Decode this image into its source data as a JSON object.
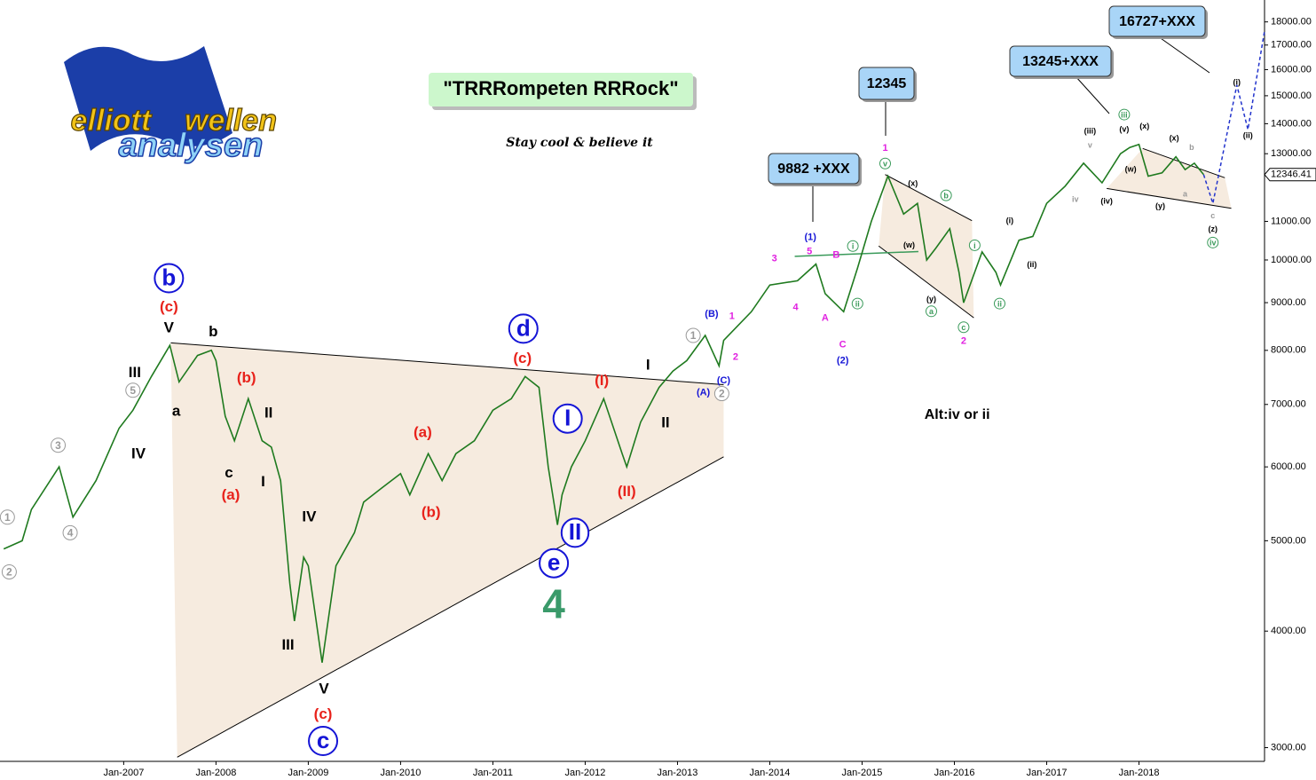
{
  "chart_data": {
    "type": "line",
    "title": "\"TRRRompeten RRRock\"",
    "subtitle": "Stay cool & believe it",
    "logo": [
      "elliott",
      "wellen",
      "analysen"
    ],
    "boxes": [
      "12345",
      "9882 +XXX",
      "13245+XXX",
      "16727+XXX"
    ],
    "log_y": true,
    "grid": false,
    "xlim": [
      2005.66,
      2019.36
    ],
    "ylim": [
      2900,
      19000
    ],
    "xticks": [
      {
        "value": 2007,
        "label": "Jan-2007"
      },
      {
        "value": 2008,
        "label": "Jan-2008"
      },
      {
        "value": 2009,
        "label": "Jan-2009"
      },
      {
        "value": 2010,
        "label": "Jan-2010"
      },
      {
        "value": 2011,
        "label": "Jan-2011"
      },
      {
        "value": 2012,
        "label": "Jan-2012"
      },
      {
        "value": 2013,
        "label": "Jan-2013"
      },
      {
        "value": 2014,
        "label": "Jan-2014"
      },
      {
        "value": 2015,
        "label": "Jan-2015"
      },
      {
        "value": 2016,
        "label": "Jan-2016"
      },
      {
        "value": 2017,
        "label": "Jan-2017"
      },
      {
        "value": 2018,
        "label": "Jan-2018"
      }
    ],
    "yticks": [
      {
        "value": 3000,
        "label": "3000.00"
      },
      {
        "value": 4000,
        "label": "4000.00"
      },
      {
        "value": 5000,
        "label": "5000.00"
      },
      {
        "value": 6000,
        "label": "6000.00"
      },
      {
        "value": 7000,
        "label": "7000.00"
      },
      {
        "value": 8000,
        "label": "8000.00"
      },
      {
        "value": 9000,
        "label": "9000.00"
      },
      {
        "value": 10000,
        "label": "10000.00"
      },
      {
        "value": 11000,
        "label": "11000.00"
      },
      {
        "value": 13000,
        "label": "13000.00"
      },
      {
        "value": 14000,
        "label": "14000.00"
      },
      {
        "value": 15000,
        "label": "15000.00"
      },
      {
        "value": 16000,
        "label": "16000.00"
      },
      {
        "value": 17000,
        "label": "17000.00"
      },
      {
        "value": 18000,
        "label": "18000.00"
      }
    ],
    "y_marker": {
      "value": 12346.41,
      "label": "12346.41"
    },
    "shade_color": "#f6ebdf",
    "series": [
      {
        "color": "#1f7a1f",
        "x": [
          2005.7,
          2005.9,
          2006.0,
          2006.3,
          2006.45,
          2006.7,
          2006.95,
          2007.1,
          2007.3,
          2007.5,
          2007.6,
          2007.8,
          2007.95,
          2008.0,
          2008.1,
          2008.2,
          2008.35,
          2008.5,
          2008.6,
          2008.7,
          2008.8,
          2008.85,
          2008.95,
          2009.0,
          2009.15,
          2009.3,
          2009.5,
          2009.6,
          2009.8,
          2010.0,
          2010.1,
          2010.3,
          2010.45,
          2010.6,
          2010.8,
          2011.0,
          2011.2,
          2011.35,
          2011.5,
          2011.6,
          2011.7,
          2011.75,
          2011.85,
          2012.0,
          2012.2,
          2012.4,
          2012.45,
          2012.6,
          2012.8,
          2012.95,
          2013.1,
          2013.3,
          2013.45,
          2013.5,
          2013.8,
          2014.0,
          2014.3,
          2014.5,
          2014.6,
          2014.8,
          2014.95,
          2015.1,
          2015.28,
          2015.45,
          2015.6,
          2015.7,
          2015.8,
          2015.95,
          2016.05,
          2016.1,
          2016.3,
          2016.45,
          2016.5,
          2016.7,
          2016.85,
          2017.0,
          2017.2,
          2017.4,
          2017.6,
          2017.8,
          2017.9,
          2018.0,
          2018.1,
          2018.25,
          2018.4,
          2018.5,
          2018.6,
          2018.7
        ],
        "y": [
          4900,
          5000,
          5400,
          6000,
          5300,
          5800,
          6600,
          6900,
          7500,
          8100,
          7400,
          7900,
          8000,
          7800,
          6800,
          6400,
          7100,
          6400,
          6300,
          5800,
          4500,
          4100,
          4800,
          4700,
          3700,
          4700,
          5100,
          5500,
          5700,
          5900,
          5600,
          6200,
          5800,
          6200,
          6400,
          6900,
          7100,
          7500,
          7300,
          6000,
          5200,
          5600,
          6000,
          6400,
          7100,
          6200,
          6000,
          6700,
          7300,
          7600,
          7800,
          8300,
          7700,
          8200,
          8800,
          9400,
          9500,
          9900,
          9200,
          8800,
          9800,
          11000,
          12300,
          11200,
          11500,
          10000,
          10300,
          10800,
          9700,
          9000,
          10200,
          9700,
          9400,
          10500,
          10600,
          11500,
          12000,
          12700,
          12100,
          13000,
          13200,
          13300,
          12300,
          12400,
          12900,
          12500,
          12700,
          12346.41
        ]
      },
      {
        "color": "#2233cc",
        "dashed": true,
        "x": [
          2018.7,
          2018.8,
          2019.06,
          2019.18,
          2019.36
        ],
        "y": [
          12346.41,
          11500,
          15400,
          13800,
          17600
        ]
      }
    ],
    "channels": [
      {
        "upper": {
          "x": [
            2007.51,
            2013.5
          ],
          "y": [
            8150,
            7350
          ]
        },
        "lower": {
          "x": [
            2007.58,
            2013.5
          ],
          "y": [
            2930,
            6150
          ]
        }
      },
      {
        "upper": {
          "x": [
            2015.25,
            2016.19
          ],
          "y": [
            12350,
            11020
          ]
        },
        "lower": {
          "x": [
            2015.18,
            2016.21
          ],
          "y": [
            10350,
            8670
          ]
        }
      },
      {
        "upper": {
          "x": [
            2018.04,
            2018.93
          ],
          "y": [
            13170,
            12250
          ]
        },
        "lower": {
          "x": [
            2017.65,
            2019.0
          ],
          "y": [
            11930,
            11360
          ]
        }
      }
    ],
    "trendlines": [
      {
        "x": [
          2014.27,
          2015.61
        ],
        "y": [
          10090,
          10210
        ],
        "color": "#3a9a5a"
      }
    ],
    "annotations": [
      {
        "text": "b",
        "x": 2007.49,
        "y": 9560,
        "color": "#1515d6",
        "style": "circled-big"
      },
      {
        "text": "(c)",
        "x": 2007.49,
        "y": 8910,
        "color": "#e8221b",
        "style": "label"
      },
      {
        "text": "V",
        "x": 2007.49,
        "y": 8470,
        "color": "#000000",
        "style": "label"
      },
      {
        "text": "a",
        "x": 2007.57,
        "y": 6890,
        "color": "#000000",
        "style": "label"
      },
      {
        "text": "b",
        "x": 2007.97,
        "y": 8380,
        "color": "#000000",
        "style": "label"
      },
      {
        "text": "(b)",
        "x": 2008.33,
        "y": 7480,
        "color": "#e8221b",
        "style": "label"
      },
      {
        "text": "c",
        "x": 2008.14,
        "y": 5920,
        "color": "#000000",
        "style": "label"
      },
      {
        "text": "(a)",
        "x": 2008.16,
        "y": 5600,
        "color": "#e8221b",
        "style": "label"
      },
      {
        "text": "II",
        "x": 2008.57,
        "y": 6860,
        "color": "#000000",
        "style": "label"
      },
      {
        "text": "I",
        "x": 2008.51,
        "y": 5790,
        "color": "#000000",
        "style": "label"
      },
      {
        "text": "III",
        "x": 2007.12,
        "y": 7580,
        "color": "#000000",
        "style": "label"
      },
      {
        "text": "5",
        "x": 2007.1,
        "y": 7250,
        "color": "#999999",
        "style": "circled"
      },
      {
        "text": "IV",
        "x": 2007.16,
        "y": 6200,
        "color": "#000000",
        "style": "label"
      },
      {
        "text": "3",
        "x": 2006.29,
        "y": 6330,
        "color": "#999999",
        "style": "circled"
      },
      {
        "text": "4",
        "x": 2006.42,
        "y": 5100,
        "color": "#999999",
        "style": "circled"
      },
      {
        "text": "1",
        "x": 2005.74,
        "y": 5300,
        "color": "#999999",
        "style": "circled"
      },
      {
        "text": "2",
        "x": 2005.76,
        "y": 4630,
        "color": "#999999",
        "style": "circled"
      },
      {
        "text": "IV",
        "x": 2009.01,
        "y": 5310,
        "color": "#000000",
        "style": "label"
      },
      {
        "text": "III",
        "x": 2008.78,
        "y": 3870,
        "color": "#000000",
        "style": "label"
      },
      {
        "text": "V",
        "x": 2009.17,
        "y": 3470,
        "color": "#000000",
        "style": "label"
      },
      {
        "text": "(c)",
        "x": 2009.16,
        "y": 3260,
        "color": "#e8221b",
        "style": "label"
      },
      {
        "text": "c",
        "x": 2009.16,
        "y": 3050,
        "color": "#1515d6",
        "style": "circled-big"
      },
      {
        "text": "(a)",
        "x": 2010.24,
        "y": 6540,
        "color": "#e8221b",
        "style": "label"
      },
      {
        "text": "(b)",
        "x": 2010.33,
        "y": 5370,
        "color": "#e8221b",
        "style": "label"
      },
      {
        "text": "d",
        "x": 2011.33,
        "y": 8440,
        "color": "#1515d6",
        "style": "circled-big"
      },
      {
        "text": "(c)",
        "x": 2011.32,
        "y": 7850,
        "color": "#e8221b",
        "style": "label"
      },
      {
        "text": "(I)",
        "x": 2012.18,
        "y": 7430,
        "color": "#e8221b",
        "style": "label"
      },
      {
        "text": "I",
        "x": 2011.81,
        "y": 6760,
        "color": "#1515d6",
        "style": "circled-big"
      },
      {
        "text": "II",
        "x": 2011.89,
        "y": 5100,
        "color": "#1515d6",
        "style": "circled-big"
      },
      {
        "text": "e",
        "x": 2011.66,
        "y": 4730,
        "color": "#1515d6",
        "style": "circled-big"
      },
      {
        "text": "4",
        "x": 2011.66,
        "y": 4250,
        "color": "#3a9a6a",
        "style": "huge"
      },
      {
        "text": "(II)",
        "x": 2012.45,
        "y": 5650,
        "color": "#e8221b",
        "style": "label"
      },
      {
        "text": "I",
        "x": 2012.68,
        "y": 7720,
        "color": "#000000",
        "style": "label"
      },
      {
        "text": "II",
        "x": 2012.87,
        "y": 6700,
        "color": "#000000",
        "style": "label"
      },
      {
        "text": "(A)",
        "x": 2013.28,
        "y": 7220,
        "color": "#1515d6",
        "style": "small"
      },
      {
        "text": "(B)",
        "x": 2013.37,
        "y": 8770,
        "color": "#1515d6",
        "style": "small"
      },
      {
        "text": "(C)",
        "x": 2013.5,
        "y": 7440,
        "color": "#1515d6",
        "style": "small"
      },
      {
        "text": "1",
        "x": 2013.17,
        "y": 8300,
        "color": "#999999",
        "style": "circled"
      },
      {
        "text": "2",
        "x": 2013.48,
        "y": 7190,
        "color": "#999999",
        "style": "circled"
      },
      {
        "text": "1",
        "x": 2013.59,
        "y": 8720,
        "color": "#e020e0",
        "style": "small"
      },
      {
        "text": "2",
        "x": 2013.63,
        "y": 7880,
        "color": "#e020e0",
        "style": "small"
      },
      {
        "text": "3",
        "x": 2014.05,
        "y": 10050,
        "color": "#e020e0",
        "style": "small"
      },
      {
        "text": "4",
        "x": 2014.28,
        "y": 8910,
        "color": "#e020e0",
        "style": "small"
      },
      {
        "text": "5",
        "x": 2014.43,
        "y": 10230,
        "color": "#e020e0",
        "style": "small"
      },
      {
        "text": "(1)",
        "x": 2014.44,
        "y": 10600,
        "color": "#1515d6",
        "style": "small"
      },
      {
        "text": "A",
        "x": 2014.6,
        "y": 8680,
        "color": "#e020e0",
        "style": "small"
      },
      {
        "text": "B",
        "x": 2014.72,
        "y": 10140,
        "color": "#e020e0",
        "style": "small"
      },
      {
        "text": "C",
        "x": 2014.79,
        "y": 8130,
        "color": "#e020e0",
        "style": "small"
      },
      {
        "text": "(2)",
        "x": 2014.79,
        "y": 7810,
        "color": "#1515d6",
        "style": "small"
      },
      {
        "text": "1",
        "x": 2015.25,
        "y": 13200,
        "color": "#e020e0",
        "style": "small"
      },
      {
        "text": "v",
        "x": 2015.25,
        "y": 12690,
        "color": "#3a9a5a",
        "style": "circled-small"
      },
      {
        "text": "i",
        "x": 2014.9,
        "y": 10350,
        "color": "#3a9a5a",
        "style": "circled-small"
      },
      {
        "text": "ii",
        "x": 2014.95,
        "y": 8980,
        "color": "#3a9a5a",
        "style": "circled-small"
      },
      {
        "text": "(x)",
        "x": 2015.55,
        "y": 12090,
        "color": "#000000",
        "style": "tiny"
      },
      {
        "text": "(w)",
        "x": 2015.51,
        "y": 10390,
        "color": "#000000",
        "style": "tiny"
      },
      {
        "text": "(y)",
        "x": 2015.75,
        "y": 9090,
        "color": "#000000",
        "style": "tiny"
      },
      {
        "text": "a",
        "x": 2015.75,
        "y": 8810,
        "color": "#3a9a5a",
        "style": "circled-small"
      },
      {
        "text": "b",
        "x": 2015.91,
        "y": 11730,
        "color": "#3a9a5a",
        "style": "circled-small"
      },
      {
        "text": "c",
        "x": 2016.1,
        "y": 8470,
        "color": "#3a9a5a",
        "style": "circled-small"
      },
      {
        "text": "2",
        "x": 2016.1,
        "y": 8200,
        "color": "#e020e0",
        "style": "small"
      },
      {
        "text": "i",
        "x": 2016.22,
        "y": 10370,
        "color": "#3a9a5a",
        "style": "circled-small"
      },
      {
        "text": "ii",
        "x": 2016.49,
        "y": 8980,
        "color": "#3a9a5a",
        "style": "circled-small"
      },
      {
        "text": "(i)",
        "x": 2016.6,
        "y": 11030,
        "color": "#000000",
        "style": "tiny"
      },
      {
        "text": "(ii)",
        "x": 2016.84,
        "y": 9900,
        "color": "#000000",
        "style": "tiny"
      },
      {
        "text": "iv",
        "x": 2017.31,
        "y": 11630,
        "color": "#999999",
        "style": "tiny"
      },
      {
        "text": "(iii)",
        "x": 2017.47,
        "y": 13770,
        "color": "#000000",
        "style": "tiny"
      },
      {
        "text": "v",
        "x": 2017.47,
        "y": 13290,
        "color": "#999999",
        "style": "tiny"
      },
      {
        "text": "(iv)",
        "x": 2017.65,
        "y": 11580,
        "color": "#000000",
        "style": "tiny"
      },
      {
        "text": "iii",
        "x": 2017.84,
        "y": 14320,
        "color": "#3a9a5a",
        "style": "circled-small"
      },
      {
        "text": "(v)",
        "x": 2017.84,
        "y": 13820,
        "color": "#000000",
        "style": "tiny"
      },
      {
        "text": "(w)",
        "x": 2017.91,
        "y": 12530,
        "color": "#000000",
        "style": "tiny"
      },
      {
        "text": "(x)",
        "x": 2018.06,
        "y": 13930,
        "color": "#000000",
        "style": "tiny"
      },
      {
        "text": "(y)",
        "x": 2018.23,
        "y": 11440,
        "color": "#000000",
        "style": "tiny"
      },
      {
        "text": "(x)",
        "x": 2018.38,
        "y": 13530,
        "color": "#000000",
        "style": "tiny"
      },
      {
        "text": "a",
        "x": 2018.5,
        "y": 11780,
        "color": "#999999",
        "style": "tiny"
      },
      {
        "text": "b",
        "x": 2018.57,
        "y": 13220,
        "color": "#999999",
        "style": "tiny"
      },
      {
        "text": "c",
        "x": 2018.8,
        "y": 11170,
        "color": "#999999",
        "style": "tiny"
      },
      {
        "text": "(z)",
        "x": 2018.8,
        "y": 10800,
        "color": "#000000",
        "style": "tiny"
      },
      {
        "text": "iv",
        "x": 2018.8,
        "y": 10440,
        "color": "#3a9a5a",
        "style": "circled-small"
      },
      {
        "text": "(i)",
        "x": 2019.06,
        "y": 15530,
        "color": "#000000",
        "style": "tiny"
      },
      {
        "text": "(ii)",
        "x": 2019.18,
        "y": 13610,
        "color": "#000000",
        "style": "tiny"
      },
      {
        "text": "Alt:iv or ii",
        "x": 2016.03,
        "y": 6830,
        "color": "#000000",
        "style": "note"
      }
    ]
  }
}
